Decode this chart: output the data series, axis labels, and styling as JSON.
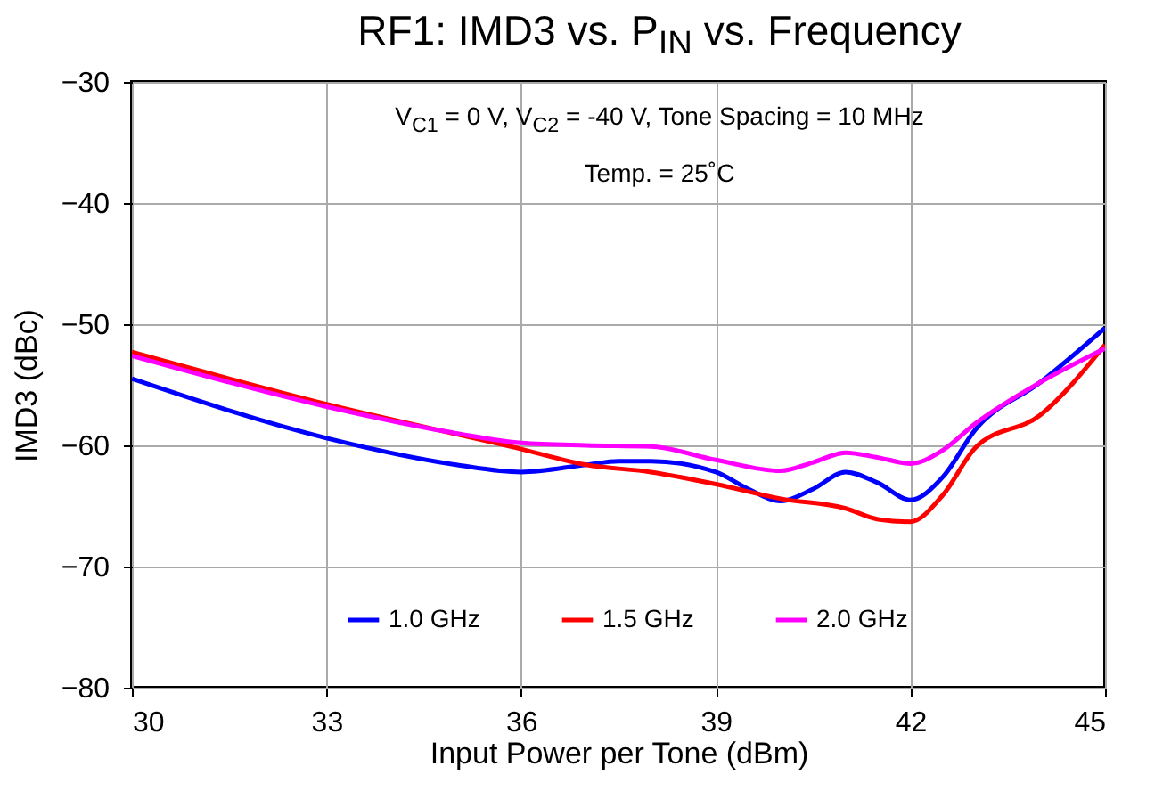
{
  "chart_data": {
    "type": "line",
    "title": "RF1: IMD3 vs. P$_{IN}$ vs. Frequency",
    "xlabel": "Input Power per Tone (dBm)",
    "ylabel": "IMD3 (dBc)",
    "annotations": [
      "V$_{C1}$ = 0 V, V$_{C2}$ = -40 V, Tone Spacing = 10 MHz",
      "Temp. = 25˚C"
    ],
    "xlim": [
      30,
      45
    ],
    "xticks": [
      30,
      33,
      36,
      39,
      42,
      45
    ],
    "ylim": [
      -80,
      -30
    ],
    "yticks": [
      -80,
      -70,
      -60,
      -50,
      -40,
      -30
    ],
    "grid": true,
    "legend": "bottom",
    "line_style": "solid",
    "marker": "none",
    "series": [
      {
        "name": "1.0 GHz",
        "color": "#0000ff",
        "x": [
          30,
          33,
          35,
          36,
          37,
          37.5,
          38,
          39,
          39.5,
          40,
          40.5,
          41,
          41.5,
          42,
          42.5,
          43,
          44,
          45
        ],
        "values": [
          -54.5,
          -59.4,
          -61.6,
          -62.2,
          -61.6,
          -61.3,
          -61.3,
          -62.2,
          -63.6,
          -64.6,
          -63.6,
          -62.2,
          -63.1,
          -64.5,
          -62.6,
          -58.7,
          -54.8,
          -50.3
        ]
      },
      {
        "name": "1.5 GHz",
        "color": "#ff0000",
        "x": [
          30,
          33,
          36,
          37,
          38,
          39,
          40,
          41,
          41.5,
          42,
          42.5,
          43,
          44,
          45
        ],
        "values": [
          -52.3,
          -56.6,
          -60.3,
          -61.6,
          -62.2,
          -63.2,
          -64.4,
          -65.2,
          -66.1,
          -66.3,
          -64.1,
          -60.2,
          -57.5,
          -51.7
        ]
      },
      {
        "name": "2.0 GHz",
        "color": "#ff00ff",
        "x": [
          30,
          33,
          35,
          36,
          37,
          38,
          39,
          40,
          40.5,
          41,
          41.5,
          42,
          42.5,
          43,
          44,
          45
        ],
        "values": [
          -52.6,
          -56.8,
          -59.0,
          -59.8,
          -60.0,
          -60.1,
          -61.2,
          -62.1,
          -61.4,
          -60.6,
          -61.0,
          -61.5,
          -60.4,
          -58.2,
          -54.8,
          -52.0
        ]
      }
    ]
  }
}
